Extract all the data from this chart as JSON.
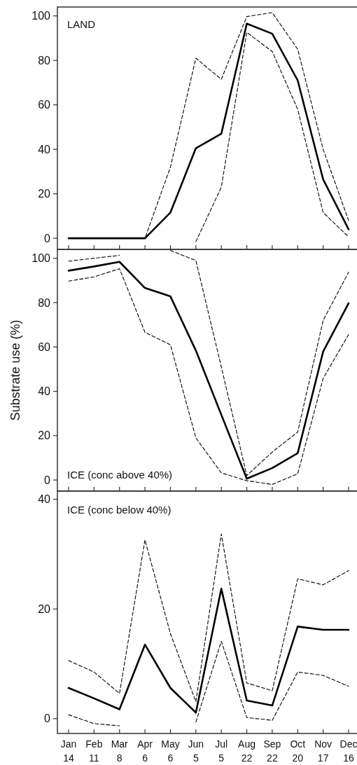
{
  "chart_data": [
    {
      "type": "line",
      "annotations": [
        "LAND"
      ],
      "categories": [
        null,
        null,
        null,
        null,
        null,
        null,
        null,
        null,
        null,
        null,
        null,
        null
      ],
      "ylim": [
        -5,
        104
      ],
      "yticks": [
        0,
        20,
        40,
        60,
        80,
        100
      ],
      "tick_labels": "y",
      "grid": false,
      "marker": "none",
      "series": [
        {
          "color": "#000000",
          "line_style": "solid",
          "values": [
            0,
            0,
            0,
            0,
            11.6,
            40.5,
            47,
            96.5,
            92,
            71,
            26.5,
            4
          ]
        },
        {
          "color": "#000000",
          "line_style": "dashed",
          "values": [
            0,
            0,
            0,
            0,
            32,
            81,
            71.5,
            99.7,
            101.5,
            85,
            40,
            8
          ]
        },
        {
          "color": "#000000",
          "line_style": "dashed",
          "values": [
            0,
            0,
            0,
            0,
            null,
            -1.5,
            23,
            92.6,
            84,
            58,
            11.6,
            0.6
          ]
        }
      ]
    },
    {
      "type": "line",
      "annotations": [
        "ICE (conc above 40%)"
      ],
      "ylabel": "Substrate use (%)",
      "categories": [
        null,
        null,
        null,
        null,
        null,
        null,
        null,
        null,
        null,
        null,
        null,
        null
      ],
      "ylim": [
        -5,
        104
      ],
      "yticks": [
        0,
        20,
        40,
        60,
        80,
        100
      ],
      "tick_labels": "y",
      "grid": false,
      "marker": "none",
      "series": [
        {
          "color": "#000000",
          "line_style": "solid",
          "values": [
            94.4,
            96.3,
            98.4,
            86.6,
            82.8,
            58.4,
            29.4,
            0.6,
            5.4,
            12.1,
            57.9,
            79.7
          ]
        },
        {
          "color": "#000000",
          "line_style": "dashed",
          "values": [
            98.7,
            100,
            101.3,
            null,
            103.5,
            99,
            51,
            2,
            12.6,
            21.6,
            72,
            93.7
          ]
        },
        {
          "color": "#000000",
          "line_style": "dashed",
          "values": [
            89.7,
            91.6,
            95.3,
            66.6,
            61,
            19,
            3.2,
            -0.3,
            -2,
            2.8,
            45.8,
            65.6
          ]
        }
      ]
    },
    {
      "type": "line",
      "annotations": [
        "ICE (conc below 40%)"
      ],
      "categories": [
        "Jan\n14",
        "Feb\n11",
        "Mar\n8",
        "Apr\n6",
        "May\n6",
        "Jun\n5",
        "Jul\n5",
        "Aug\n22",
        "Sep\n22",
        "Oct\n20",
        "Nov\n17",
        "Dec\n16"
      ],
      "ylim": [
        -2.7,
        41.5
      ],
      "yticks": [
        0,
        20,
        40
      ],
      "grid": false,
      "marker": "none",
      "series": [
        {
          "color": "#000000",
          "line_style": "solid",
          "values": [
            5.6,
            3.7,
            1.7,
            13.5,
            5.6,
            1.1,
            23.7,
            3.3,
            2.4,
            16.8,
            16.2,
            16.2
          ]
        },
        {
          "color": "#000000",
          "line_style": "dashed",
          "values": [
            10.6,
            8.5,
            4.6,
            32.6,
            15.5,
            3.1,
            33.7,
            6.5,
            5.1,
            25.5,
            24.4,
            27
          ]
        },
        {
          "color": "#000000",
          "line_style": "dashed",
          "values": [
            0.7,
            -0.9,
            -1.3,
            null,
            null,
            -0.6,
            14.1,
            0.2,
            -0.3,
            8.5,
            7.9,
            5.9
          ]
        }
      ]
    }
  ]
}
